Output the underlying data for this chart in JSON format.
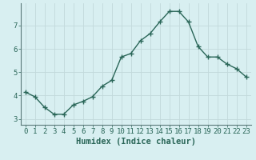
{
  "x": [
    0,
    1,
    2,
    3,
    4,
    5,
    6,
    7,
    8,
    9,
    10,
    11,
    12,
    13,
    14,
    15,
    16,
    17,
    18,
    19,
    20,
    21,
    22,
    23
  ],
  "y": [
    4.15,
    3.95,
    3.5,
    3.2,
    3.2,
    3.6,
    3.75,
    3.95,
    4.4,
    4.65,
    5.65,
    5.8,
    6.35,
    6.65,
    7.15,
    7.6,
    7.6,
    7.15,
    6.1,
    5.65,
    5.65,
    5.35,
    5.15,
    4.8
  ],
  "xlabel": "Humidex (Indice chaleur)",
  "bg_color": "#d8eff1",
  "line_color": "#2a6658",
  "grid_color": "#c2d9db",
  "text_color": "#2a6658",
  "spine_color": "#5a7a7a",
  "xlim": [
    -0.5,
    23.5
  ],
  "ylim": [
    2.75,
    7.95
  ],
  "yticks": [
    3,
    4,
    5,
    6,
    7
  ],
  "xticks": [
    0,
    1,
    2,
    3,
    4,
    5,
    6,
    7,
    8,
    9,
    10,
    11,
    12,
    13,
    14,
    15,
    16,
    17,
    18,
    19,
    20,
    21,
    22,
    23
  ],
  "xlabel_fontsize": 7.5,
  "tick_fontsize": 6.5,
  "line_width": 1.0,
  "marker_size": 4.0,
  "marker_ew": 1.0
}
